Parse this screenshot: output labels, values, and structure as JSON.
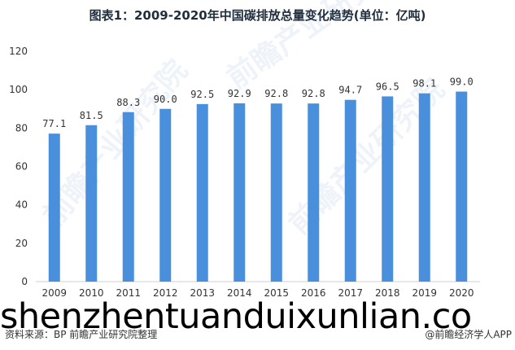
{
  "title": "图表1：2009-2020年中国碳排放总量变化趋势(单位：亿吨)",
  "chart_data": {
    "type": "bar",
    "categories": [
      "2009",
      "2010",
      "2011",
      "2012",
      "2013",
      "2014",
      "2015",
      "2016",
      "2017",
      "2018",
      "2019",
      "2020"
    ],
    "values": [
      77.1,
      81.5,
      88.3,
      90.0,
      92.5,
      92.9,
      92.8,
      92.8,
      94.7,
      96.5,
      98.1,
      99.0
    ],
    "value_labels": [
      "77.1",
      "81.5",
      "88.3",
      "90.0",
      "92.5",
      "92.9",
      "92.8",
      "92.8",
      "94.7",
      "96.5",
      "98.1",
      "99.0"
    ],
    "yticks": [
      "0",
      "20",
      "40",
      "60",
      "80",
      "100",
      "120"
    ],
    "ylim": [
      0,
      120
    ],
    "bar_color": "#4a8fdc",
    "grid": false,
    "legend": "none"
  },
  "watermark_text": "shenzhentuanduixunlian.co",
  "background_watermark": "前瞻产业研究院",
  "source": "资料来源：BP 前瞻产业研究院整理",
  "credit": "@前瞻经济学人APP"
}
